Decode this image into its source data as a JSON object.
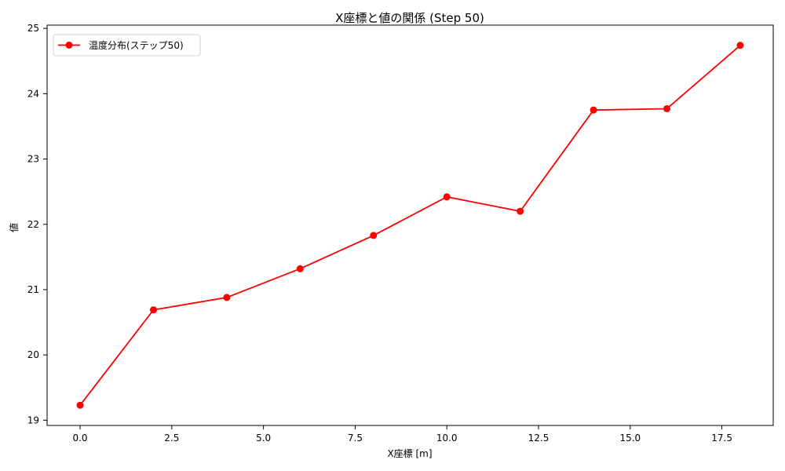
{
  "chart_data": {
    "type": "line",
    "title": "X座標と値の関係 (Step 50)",
    "xlabel": "X座標 [m]",
    "ylabel": "値",
    "x": [
      0,
      2,
      4,
      6,
      8,
      10,
      12,
      14,
      16,
      18
    ],
    "series": [
      {
        "name": "温度分布(ステップ50)",
        "color": "#ff0000",
        "marker": "circle",
        "values": [
          19.23,
          20.69,
          20.88,
          21.32,
          21.83,
          22.42,
          22.2,
          23.75,
          23.77,
          24.74
        ]
      }
    ],
    "xlim": [
      -0.9,
      18.9
    ],
    "ylim": [
      18.92,
      25.05
    ],
    "xticks": [
      0.0,
      2.5,
      5.0,
      7.5,
      10.0,
      12.5,
      15.0,
      17.5
    ],
    "xtick_labels": [
      "0.0",
      "2.5",
      "5.0",
      "7.5",
      "10.0",
      "12.5",
      "15.0",
      "17.5"
    ],
    "yticks": [
      19,
      20,
      21,
      22,
      23,
      24,
      25
    ],
    "ytick_labels": [
      "19",
      "20",
      "21",
      "22",
      "23",
      "24",
      "25"
    ],
    "grid": false,
    "legend_position": "top-left"
  }
}
